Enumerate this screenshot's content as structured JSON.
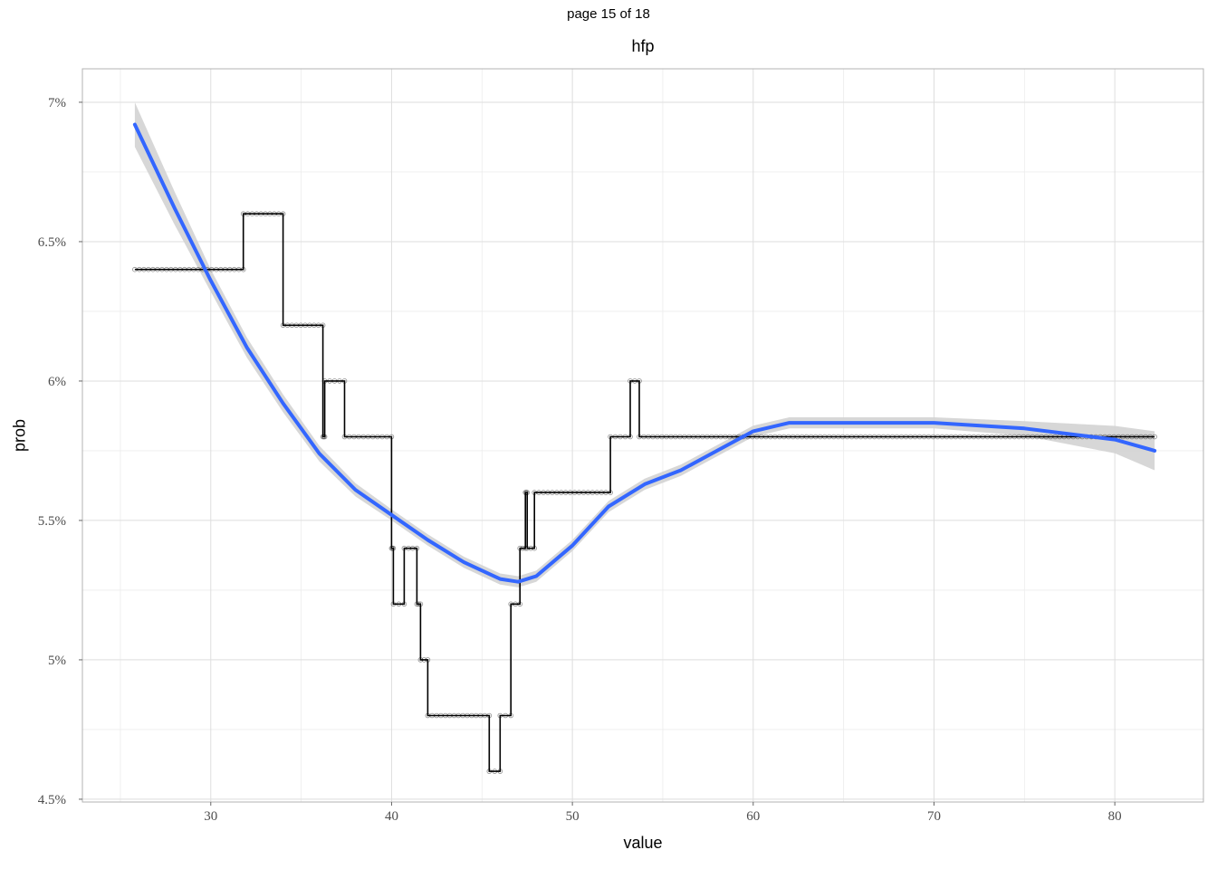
{
  "page_indicator": "page 15 of 18",
  "chart_data": {
    "type": "line",
    "title": "hfp",
    "xlabel": "value",
    "ylabel": "prob",
    "xlim": [
      22.9,
      84.9
    ],
    "ylim": [
      0.0449,
      0.0712
    ],
    "x_ticks": [
      30,
      40,
      50,
      60,
      70,
      80
    ],
    "x_tick_labels": [
      "30",
      "40",
      "50",
      "60",
      "70",
      "80"
    ],
    "y_ticks": [
      0.045,
      0.05,
      0.055,
      0.06,
      0.065,
      0.07
    ],
    "y_tick_labels": [
      "4.5%",
      "5%",
      "5.5%",
      "6%",
      "6.5%",
      "7%"
    ],
    "grid": true,
    "series": [
      {
        "kind": "step-points",
        "color": "#000000",
        "points": [
          [
            25.8,
            0.064
          ],
          [
            31.8,
            0.064
          ],
          [
            31.8,
            0.066
          ],
          [
            34.0,
            0.066
          ],
          [
            34.0,
            0.062
          ],
          [
            36.2,
            0.062
          ],
          [
            36.2,
            0.058
          ],
          [
            36.3,
            0.058
          ],
          [
            36.3,
            0.06
          ],
          [
            37.4,
            0.06
          ],
          [
            37.4,
            0.058
          ],
          [
            40.0,
            0.058
          ],
          [
            40.0,
            0.054
          ],
          [
            40.1,
            0.054
          ],
          [
            40.1,
            0.052
          ],
          [
            40.7,
            0.052
          ],
          [
            40.7,
            0.054
          ],
          [
            41.4,
            0.054
          ],
          [
            41.4,
            0.052
          ],
          [
            41.6,
            0.052
          ],
          [
            41.6,
            0.05
          ],
          [
            42.0,
            0.05
          ],
          [
            42.0,
            0.048
          ],
          [
            45.4,
            0.048
          ],
          [
            45.4,
            0.046
          ],
          [
            46.0,
            0.046
          ],
          [
            46.0,
            0.048
          ],
          [
            46.6,
            0.048
          ],
          [
            46.6,
            0.052
          ],
          [
            47.1,
            0.052
          ],
          [
            47.1,
            0.054
          ],
          [
            47.4,
            0.054
          ],
          [
            47.4,
            0.056
          ],
          [
            47.5,
            0.056
          ],
          [
            47.5,
            0.054
          ],
          [
            47.9,
            0.054
          ],
          [
            47.9,
            0.056
          ],
          [
            52.1,
            0.056
          ],
          [
            52.1,
            0.058
          ],
          [
            53.2,
            0.058
          ],
          [
            53.2,
            0.06
          ],
          [
            53.7,
            0.06
          ],
          [
            53.7,
            0.058
          ],
          [
            82.2,
            0.058
          ]
        ]
      },
      {
        "kind": "smooth",
        "color": "#3366FF",
        "band_color": "#d3d3d3",
        "points": [
          [
            25.8,
            0.0692
          ],
          [
            28.0,
            0.0662
          ],
          [
            30.0,
            0.0636
          ],
          [
            32.0,
            0.0612
          ],
          [
            34.0,
            0.0592
          ],
          [
            36.0,
            0.0574
          ],
          [
            38.0,
            0.0561
          ],
          [
            40.0,
            0.0552
          ],
          [
            42.0,
            0.0543
          ],
          [
            44.0,
            0.0535
          ],
          [
            46.0,
            0.0529
          ],
          [
            47.0,
            0.0528
          ],
          [
            48.0,
            0.053
          ],
          [
            50.0,
            0.0541
          ],
          [
            52.0,
            0.0555
          ],
          [
            54.0,
            0.0563
          ],
          [
            56.0,
            0.0568
          ],
          [
            58.0,
            0.0575
          ],
          [
            60.0,
            0.0582
          ],
          [
            62.0,
            0.0585
          ],
          [
            65.0,
            0.0585
          ],
          [
            70.0,
            0.0585
          ],
          [
            75.0,
            0.0583
          ],
          [
            80.0,
            0.0579
          ],
          [
            82.2,
            0.0575
          ]
        ],
        "band_halfwidth": [
          [
            25.8,
            0.0008
          ],
          [
            30.0,
            0.0004
          ],
          [
            40.0,
            0.0002
          ],
          [
            47.0,
            0.0002
          ],
          [
            55.0,
            0.0002
          ],
          [
            62.0,
            0.0002
          ],
          [
            70.0,
            0.0002
          ],
          [
            78.0,
            0.0003
          ],
          [
            82.2,
            0.0007
          ]
        ]
      }
    ]
  }
}
